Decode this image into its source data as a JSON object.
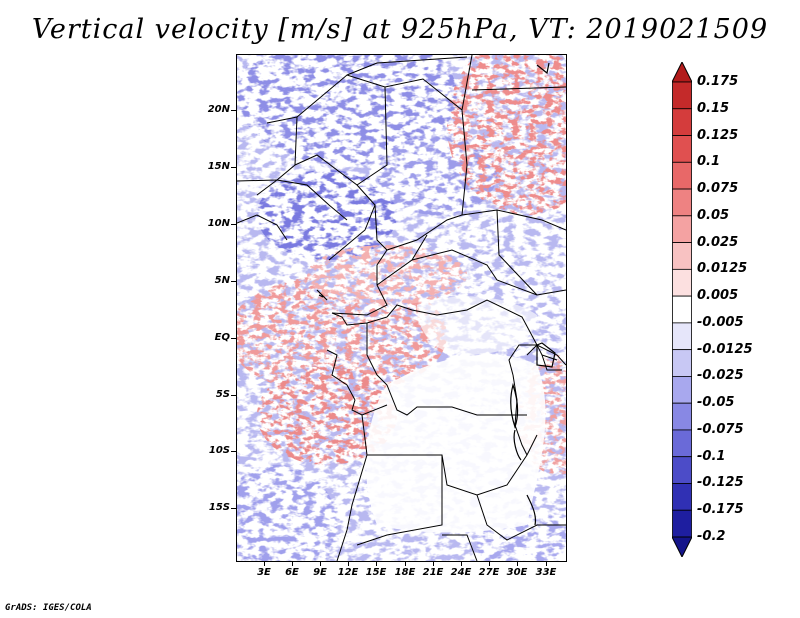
{
  "title": "Vertical velocity [m/s] at 925hPa, VT: 2019021509",
  "credit": "GrADS: IGES/COLA",
  "map": {
    "field": "vertical velocity",
    "level": "925hPa",
    "units": "m/s",
    "valid_time": "2019021509",
    "lon_range": [
      "0E",
      "35E"
    ],
    "lat_range": [
      "19S",
      "24N"
    ],
    "lat_labels": [
      "20N",
      "15N",
      "10N",
      "5N",
      "EQ",
      "5S",
      "10S",
      "15S"
    ],
    "lon_labels": [
      "3E",
      "6E",
      "9E",
      "12E",
      "15E",
      "18E",
      "21E",
      "24E",
      "27E",
      "30E",
      "33E"
    ],
    "overlay": "country borders and coastlines",
    "pattern": "mostly blue (negative) over the north and west, red (positive) patches along the Gulf of Guinea coast and north-east, near-white (neutral) over Angola, Zambia and the Congo basin"
  },
  "colorbar": {
    "labels": [
      "0.175",
      "0.15",
      "0.125",
      "0.1",
      "0.075",
      "0.05",
      "0.025",
      "0.0125",
      "0.005",
      "-0.005",
      "-0.0125",
      "-0.025",
      "-0.05",
      "-0.075",
      "-0.1",
      "-0.125",
      "-0.175",
      "-0.2"
    ],
    "colors": [
      "#b21b1b",
      "#c42a2a",
      "#d43c3c",
      "#e05050",
      "#e86868",
      "#ee8282",
      "#f4a2a2",
      "#f8c2c2",
      "#fce0e0",
      "#ffffff",
      "#e6e6fa",
      "#c8c8f4",
      "#a8a8ee",
      "#8888e4",
      "#6a6ad8",
      "#4c4cc8",
      "#3030b4",
      "#1e1ea0",
      "#14148a"
    ]
  }
}
